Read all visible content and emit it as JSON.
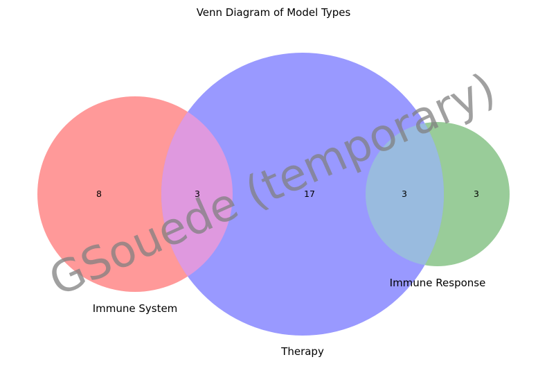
{
  "title": "Venn Diagram of Model Types",
  "watermark": "GSouede (temporary)",
  "sets": [
    {
      "key": "immune_system",
      "label": "Immune System",
      "color": "#ff9999"
    },
    {
      "key": "therapy",
      "label": "Therapy",
      "color": "#9999ff"
    },
    {
      "key": "immune_response",
      "label": "Immune Response",
      "color": "#99cc99"
    }
  ],
  "overlap_colors": {
    "immune_system_therapy": "#df99df",
    "therapy_immune_response": "#99bbdf"
  },
  "regions": [
    {
      "key": "immune_system_only",
      "sets": [
        "Immune System"
      ],
      "count": "8"
    },
    {
      "key": "immune_system_therapy",
      "sets": [
        "Immune System",
        "Therapy"
      ],
      "count": "3"
    },
    {
      "key": "therapy_only",
      "sets": [
        "Therapy"
      ],
      "count": "17"
    },
    {
      "key": "therapy_immune_response",
      "sets": [
        "Therapy",
        "Immune Response"
      ],
      "count": "3"
    },
    {
      "key": "immune_response_only",
      "sets": [
        "Immune Response"
      ],
      "count": "3"
    }
  ]
}
